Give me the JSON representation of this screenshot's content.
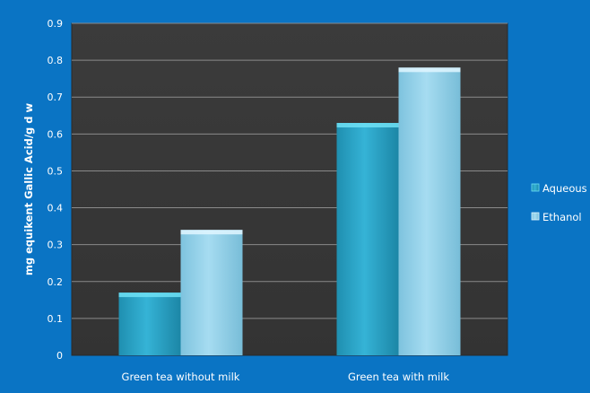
{
  "chart_data": {
    "type": "bar",
    "title": "",
    "xlabel": "",
    "ylabel": "mg equikent Gallic Acid/g d w",
    "categories": [
      "Green tea without milk",
      "Green tea with milk"
    ],
    "series": [
      {
        "name": "Aqueous",
        "values": [
          0.17,
          0.63
        ]
      },
      {
        "name": "Ethanol",
        "values": [
          0.34,
          0.78
        ]
      }
    ],
    "ylim": [
      0,
      0.9
    ],
    "yticks": [
      "0",
      "0.1",
      "0.2",
      "0.3",
      "0.4",
      "0.5",
      "0.6",
      "0.7",
      "0.8",
      "0.9"
    ],
    "grid": true,
    "legend_position": "right",
    "colors": {
      "background": "#0a74c4",
      "plot_area": "#3a3a3a",
      "gridline": "#8a8a8a",
      "series": [
        "#2fa9cb",
        "#8fd0ea"
      ]
    }
  }
}
